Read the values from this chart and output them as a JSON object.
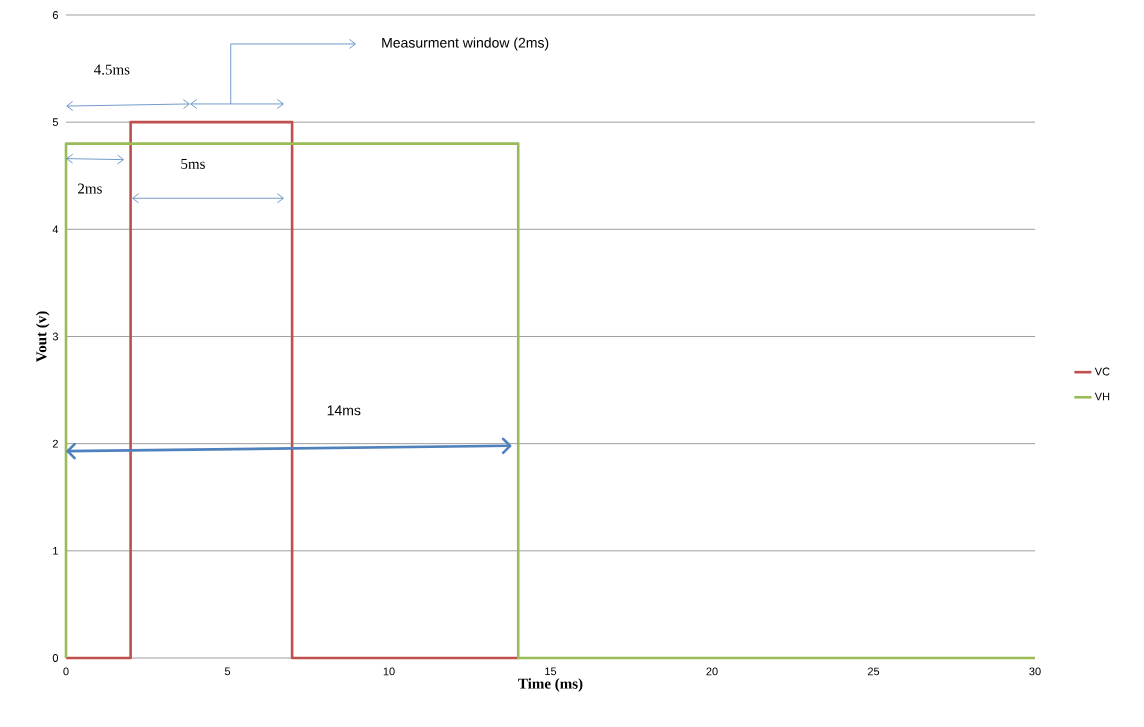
{
  "chart_data": {
    "type": "line",
    "xlabel": "Time (ms)",
    "ylabel": "Vout (v)",
    "xlim": [
      0,
      30
    ],
    "xticks": [
      0,
      5,
      10,
      15,
      20,
      25,
      30
    ],
    "ylim": [
      0,
      6
    ],
    "yticks": [
      0,
      1,
      2,
      3,
      4,
      5,
      6
    ],
    "grid": "y",
    "legend": "right",
    "marker": "none",
    "line_style": "solid",
    "series": [
      {
        "name": "VC",
        "color": "#c0504d",
        "x": [
          0,
          2,
          2,
          7,
          7,
          14
        ],
        "values": [
          0,
          0,
          5,
          5,
          0,
          0
        ]
      },
      {
        "name": "VH",
        "color": "#9bbb59",
        "x": [
          0,
          0,
          14,
          14,
          30
        ],
        "values": [
          0,
          4.8,
          4.8,
          0,
          0
        ]
      }
    ],
    "annotations": [
      "4.5ms",
      "Measurment window (2ms)",
      "2ms",
      "5ms",
      "14ms"
    ]
  }
}
